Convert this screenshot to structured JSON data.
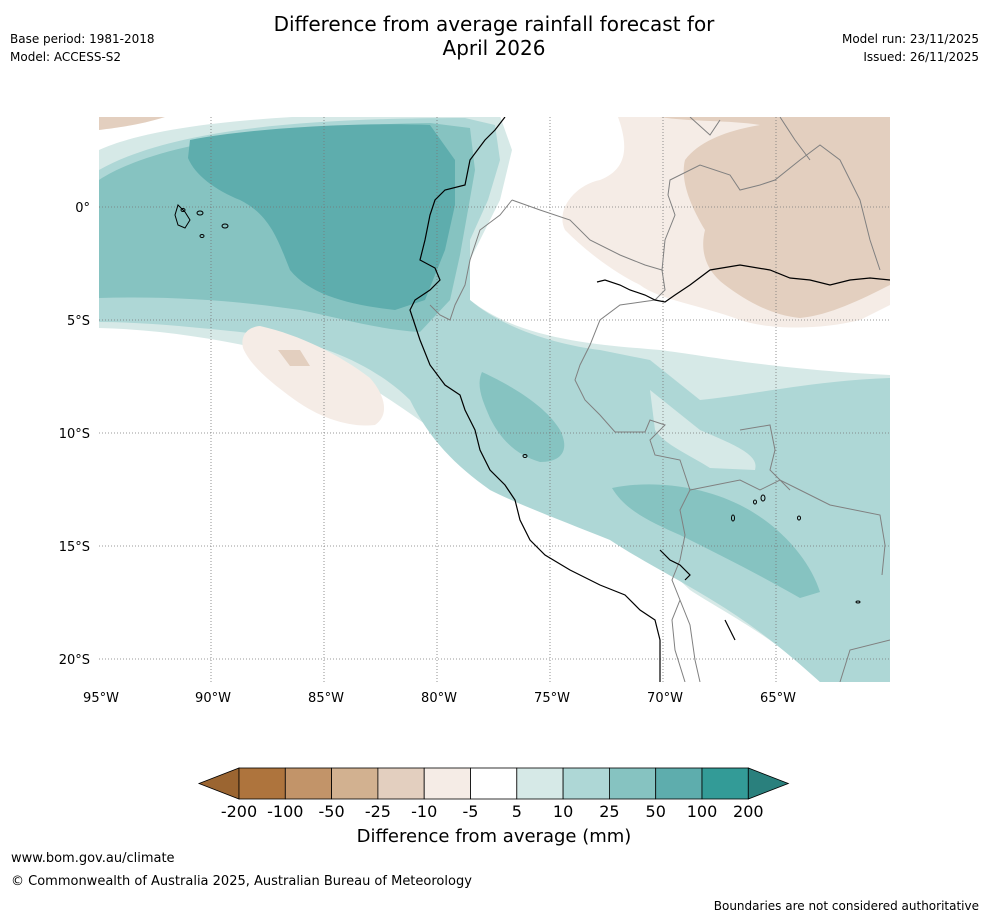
{
  "header": {
    "title_line1": "Difference from average rainfall forecast for",
    "title_line2": "April 2026",
    "base_period": "Base period: 1981-2018",
    "model": "Model: ACCESS-S2",
    "model_run": "Model run: 23/11/2025",
    "issued": "Issued: 26/11/2025"
  },
  "map": {
    "region": "Western South America",
    "lon_labels": [
      "95°W",
      "90°W",
      "85°W",
      "80°W",
      "75°W",
      "70°W",
      "65°W"
    ],
    "lat_labels": [
      "0°",
      "5°S",
      "10°S",
      "15°S",
      "20°S"
    ]
  },
  "colorbar": {
    "tick_labels": [
      "-200",
      "-100",
      "-50",
      "-25",
      "-10",
      "-5",
      "5",
      "10",
      "25",
      "50",
      "100",
      "200"
    ],
    "colors": [
      "#9b6531",
      "#ae743d",
      "#c29469",
      "#d2b190",
      "#e3cfbf",
      "#f5ece6",
      "#ffffff",
      "#d6e9e7",
      "#aed7d6",
      "#86c3c1",
      "#5eadad",
      "#339b97",
      "#2a807d"
    ],
    "label": "Difference from average (mm)"
  },
  "footer": {
    "url": "www.bom.gov.au/climate",
    "copyright": "© Commonwealth of Australia 2025, Australian Bureau of Meteorology",
    "disclaimer": "Boundaries are not considered authoritative"
  }
}
